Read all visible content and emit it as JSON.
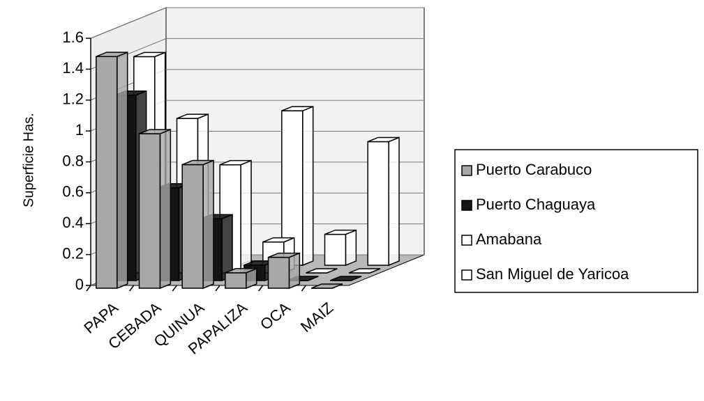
{
  "chart_data": {
    "type": "bar3d",
    "y_label": "Superficie Has.",
    "categories": [
      "PAPA",
      "CEBADA",
      "QUINUA",
      "PAPALIZA",
      "OCA",
      "MAIZ"
    ],
    "series": [
      {
        "name": "Puerto Carabuco",
        "color": "#a8a8a8",
        "values": [
          1.5,
          1.0,
          0.8,
          0.1,
          0.2,
          0
        ]
      },
      {
        "name": "Puerto Chaguaya",
        "color": "#151515",
        "values": [
          1.2,
          0.6,
          0.4,
          0.1,
          0,
          0
        ]
      },
      {
        "name": "Amabana",
        "color": "#ffffff",
        "values": [
          1.4,
          1.0,
          0.7,
          0.2,
          0,
          0
        ]
      },
      {
        "name": "San Miguel de Yaricoa",
        "color": "#ffffff",
        "values": [
          0,
          0,
          0,
          1.0,
          0.2,
          0.8
        ]
      }
    ],
    "ylim": [
      0,
      1.6
    ],
    "yticks": [
      0,
      0.2,
      0.4,
      0.6,
      0.8,
      1,
      1.2,
      1.4,
      1.6
    ],
    "grid": true,
    "legend": "right"
  }
}
